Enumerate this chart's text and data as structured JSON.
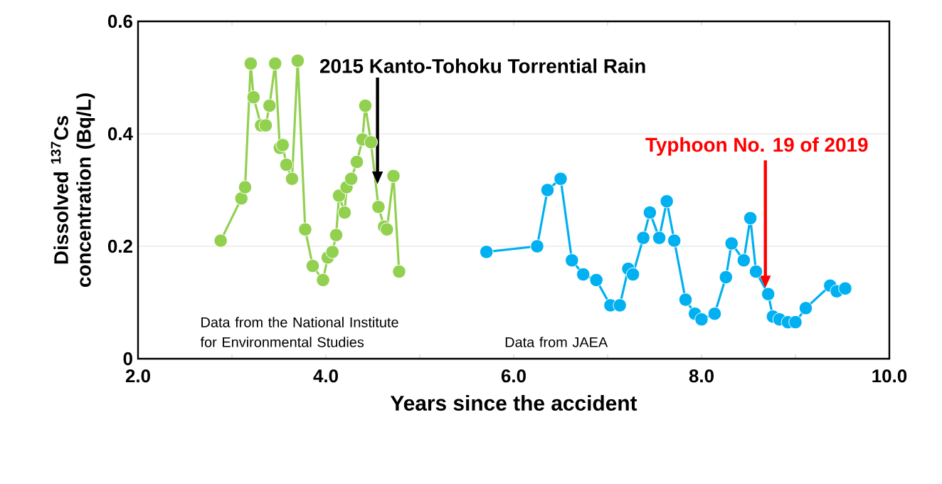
{
  "chart_data": {
    "type": "line",
    "xlabel": "Years since the accident",
    "ylabel": "Dissolved $^{137}$Cs concentration (Bq/L)",
    "xlim": [
      2,
      10
    ],
    "xticks": [
      {
        "value": 2,
        "label": "2.0"
      },
      {
        "value": 3,
        "label": null
      },
      {
        "value": 4,
        "label": "4.0"
      },
      {
        "value": 5,
        "label": null
      },
      {
        "value": 6,
        "label": "6.0"
      },
      {
        "value": 7,
        "label": null
      },
      {
        "value": 8,
        "label": "8.0"
      },
      {
        "value": 9,
        "label": null
      },
      {
        "value": 10,
        "label": "10.0"
      }
    ],
    "ylim": [
      0,
      0.6
    ],
    "yticks": [
      0,
      0.2,
      0.4,
      0.6
    ],
    "grid": "y",
    "marker": "circle",
    "series": [
      {
        "color": "#92d050",
        "x": [
          2.88,
          3.1,
          3.14,
          3.2,
          3.23,
          3.31,
          3.36,
          3.4,
          3.46,
          3.51,
          3.54,
          3.58,
          3.64,
          3.7,
          3.78,
          3.86,
          3.97,
          4.02,
          4.07,
          4.11,
          4.14,
          4.2,
          4.22,
          4.27,
          4.33,
          4.39,
          4.42,
          4.48,
          4.56,
          4.62,
          4.65,
          4.72,
          4.78
        ],
        "values": [
          0.21,
          0.285,
          0.305,
          0.525,
          0.465,
          0.415,
          0.415,
          0.45,
          0.525,
          0.375,
          0.38,
          0.345,
          0.32,
          0.53,
          0.23,
          0.165,
          0.14,
          0.18,
          0.19,
          0.22,
          0.29,
          0.26,
          0.305,
          0.32,
          0.35,
          0.39,
          0.45,
          0.385,
          0.27,
          0.235,
          0.23,
          0.325,
          0.155
        ]
      },
      {
        "color": "#00b0f0",
        "x": [
          5.71,
          6.25,
          6.36,
          6.5,
          6.62,
          6.74,
          6.88,
          7.03,
          7.13,
          7.22,
          7.27,
          7.38,
          7.45,
          7.55,
          7.63,
          7.71,
          7.83,
          7.93,
          8.0,
          8.14,
          8.26,
          8.32,
          8.45,
          8.52,
          8.58,
          8.71,
          8.76,
          8.83,
          8.92,
          9.0,
          9.11,
          9.37,
          9.44,
          9.53
        ],
        "values": [
          0.19,
          0.2,
          0.3,
          0.32,
          0.175,
          0.15,
          0.14,
          0.095,
          0.095,
          0.16,
          0.15,
          0.215,
          0.26,
          0.215,
          0.28,
          0.21,
          0.105,
          0.08,
          0.07,
          0.08,
          0.145,
          0.205,
          0.175,
          0.25,
          0.155,
          0.115,
          0.075,
          0.07,
          0.065,
          0.065,
          0.09,
          0.13,
          0.12,
          0.125
        ]
      }
    ],
    "annotations": [
      {
        "text": "2015 Kanto-Tohoku Torrential Rain",
        "x": 4.55,
        "y": 0.31
      },
      {
        "text": "Typhoon No. 19 of 2019",
        "x": 8.68,
        "y": 0.125
      },
      "Data from the National Institute for Environmental Studies",
      "Data from JAEA"
    ]
  }
}
